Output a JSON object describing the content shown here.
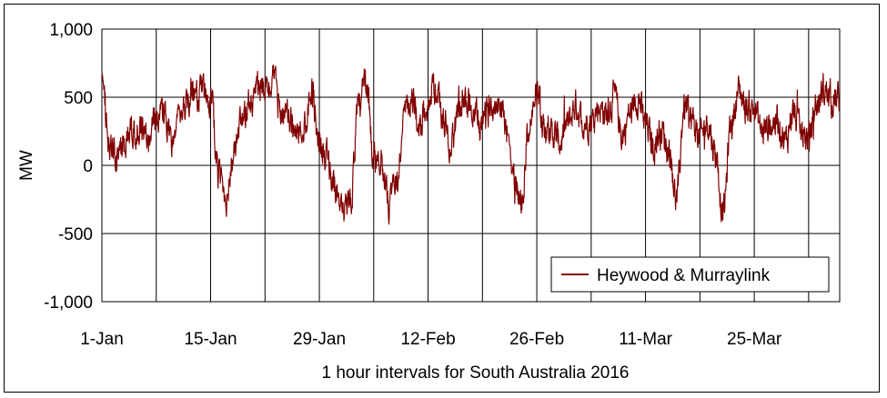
{
  "chart_data": {
    "type": "line",
    "title": "",
    "xlabel": "1 hour intervals for South Australia 2016",
    "ylabel": "MW",
    "ylim": [
      -1000,
      1000
    ],
    "y_ticks": [
      1000,
      500,
      0,
      -500,
      -1000
    ],
    "y_tick_labels": [
      "1,000",
      "500",
      "0",
      "-500",
      "-1,000"
    ],
    "x_ticks": [
      {
        "label": "1-Jan",
        "day": 0
      },
      {
        "label": "15-Jan",
        "day": 14
      },
      {
        "label": "29-Jan",
        "day": 28
      },
      {
        "label": "12-Feb",
        "day": 42
      },
      {
        "label": "26-Feb",
        "day": 56
      },
      {
        "label": "11-Mar",
        "day": 70
      },
      {
        "label": "25-Mar",
        "day": 84
      }
    ],
    "grid": true,
    "legend": {
      "position": "bottom-right",
      "entries": [
        "Heywood & Murraylink"
      ]
    },
    "series": [
      {
        "name": "Heywood & Murraylink",
        "color": "#800000",
        "x_start": "1-Jan",
        "interval": "1 hour",
        "daily_values": [
          600,
          120,
          70,
          180,
          250,
          300,
          180,
          330,
          420,
          120,
          360,
          440,
          470,
          580,
          500,
          -80,
          -220,
          80,
          280,
          470,
          560,
          520,
          610,
          420,
          320,
          220,
          290,
          560,
          170,
          60,
          -150,
          -380,
          -250,
          380,
          610,
          80,
          30,
          -300,
          -100,
          370,
          470,
          300,
          470,
          560,
          330,
          150,
          430,
          480,
          360,
          290,
          430,
          470,
          340,
          -100,
          -250,
          270,
          520,
          300,
          240,
          170,
          300,
          440,
          320,
          330,
          430,
          380,
          500,
          220,
          380,
          500,
          300,
          150,
          260,
          120,
          -250,
          430,
          330,
          200,
          320,
          90,
          -350,
          300,
          550,
          420,
          420,
          250,
          300,
          330,
          170,
          400,
          230,
          200,
          440,
          550,
          480
        ]
      }
    ]
  }
}
